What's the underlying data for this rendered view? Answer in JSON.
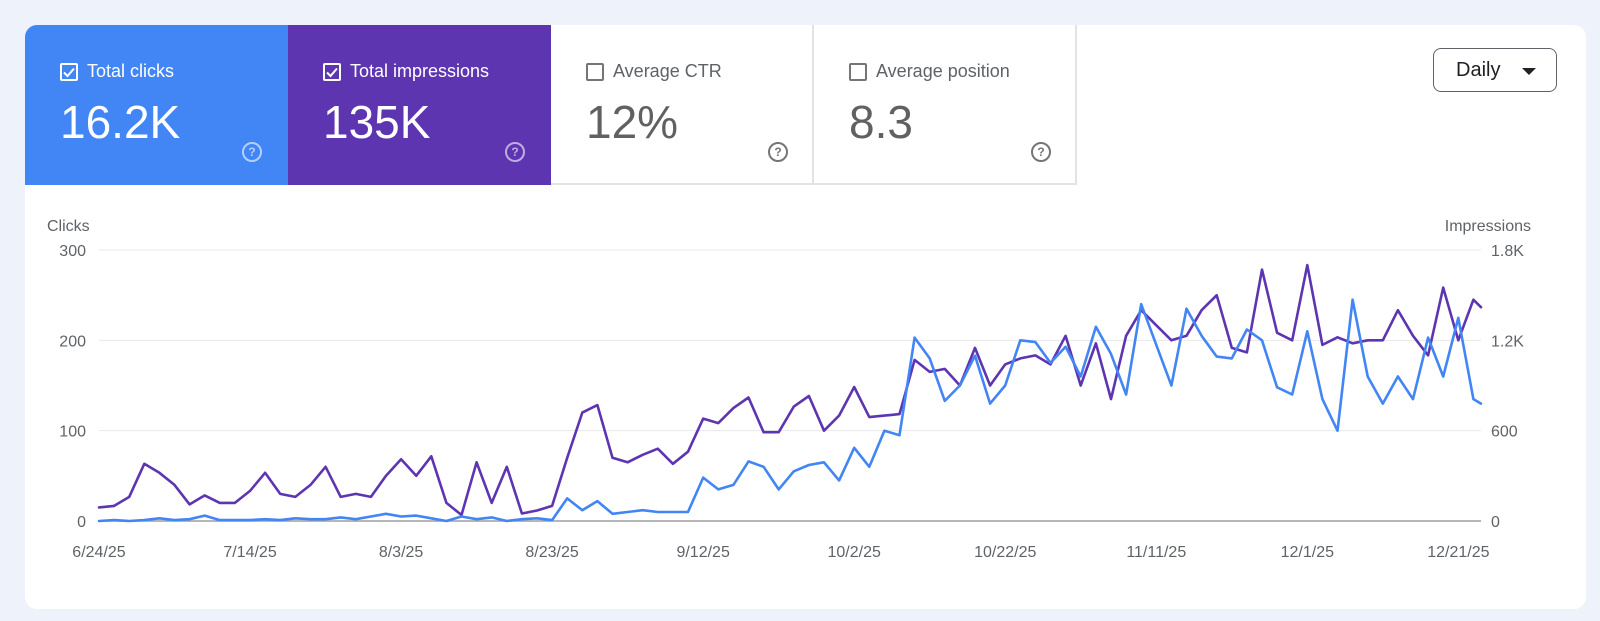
{
  "metrics": [
    {
      "label": "Total clicks",
      "value": "16.2K",
      "checked": true,
      "color": "#4285f4"
    },
    {
      "label": "Total impressions",
      "value": "135K",
      "checked": true,
      "color": "#5e35b1"
    },
    {
      "label": "Average CTR",
      "value": "12%",
      "checked": false
    },
    {
      "label": "Average position",
      "value": "8.3",
      "checked": false
    }
  ],
  "help_glyph": "?",
  "granularity": {
    "selected": "Daily"
  },
  "chart_data": {
    "type": "line",
    "y_left": {
      "label": "Clicks",
      "range": [
        0,
        300
      ],
      "ticks": [
        "0",
        "100",
        "200",
        "300"
      ]
    },
    "y_right": {
      "label": "Impressions",
      "range": [
        0,
        1800
      ],
      "ticks": [
        "0",
        "600",
        "1.2K",
        "1.8K"
      ]
    },
    "x_tick_labels": [
      "6/24/25",
      "7/14/25",
      "8/3/25",
      "8/23/25",
      "9/12/25",
      "10/2/25",
      "10/22/25",
      "11/11/25",
      "12/1/25",
      "12/21/25"
    ],
    "x_range": [
      "6/24/25",
      "12/24/25"
    ],
    "grid": "horizontal",
    "series": [
      {
        "name": "Clicks",
        "axis": "left",
        "color": "#4285f4",
        "points": [
          [
            "6/24/25",
            0
          ],
          [
            "6/26/25",
            1
          ],
          [
            "6/28/25",
            0
          ],
          [
            "6/30/25",
            1
          ],
          [
            "7/2/25",
            3
          ],
          [
            "7/4/25",
            1
          ],
          [
            "7/6/25",
            2
          ],
          [
            "7/8/25",
            6
          ],
          [
            "7/10/25",
            1
          ],
          [
            "7/12/25",
            1
          ],
          [
            "7/14/25",
            1
          ],
          [
            "7/16/25",
            2
          ],
          [
            "7/18/25",
            1
          ],
          [
            "7/20/25",
            3
          ],
          [
            "7/22/25",
            2
          ],
          [
            "7/24/25",
            2
          ],
          [
            "7/26/25",
            4
          ],
          [
            "7/28/25",
            2
          ],
          [
            "7/30/25",
            5
          ],
          [
            "8/1/25",
            8
          ],
          [
            "8/3/25",
            5
          ],
          [
            "8/5/25",
            6
          ],
          [
            "8/7/25",
            3
          ],
          [
            "8/9/25",
            0
          ],
          [
            "8/11/25",
            5
          ],
          [
            "8/13/25",
            2
          ],
          [
            "8/15/25",
            4
          ],
          [
            "8/17/25",
            0
          ],
          [
            "8/19/25",
            2
          ],
          [
            "8/21/25",
            3
          ],
          [
            "8/23/25",
            1
          ],
          [
            "8/25/25",
            25
          ],
          [
            "8/27/25",
            12
          ],
          [
            "8/29/25",
            22
          ],
          [
            "8/31/25",
            8
          ],
          [
            "9/2/25",
            10
          ],
          [
            "9/4/25",
            12
          ],
          [
            "9/6/25",
            10
          ],
          [
            "9/8/25",
            10
          ],
          [
            "9/10/25",
            10
          ],
          [
            "9/12/25",
            48
          ],
          [
            "9/14/25",
            35
          ],
          [
            "9/16/25",
            40
          ],
          [
            "9/18/25",
            66
          ],
          [
            "9/20/25",
            60
          ],
          [
            "9/22/25",
            35
          ],
          [
            "9/24/25",
            55
          ],
          [
            "9/26/25",
            62
          ],
          [
            "9/28/25",
            65
          ],
          [
            "9/30/25",
            45
          ],
          [
            "10/2/25",
            81
          ],
          [
            "10/4/25",
            60
          ],
          [
            "10/6/25",
            100
          ],
          [
            "10/8/25",
            95
          ],
          [
            "10/10/25",
            203
          ],
          [
            "10/12/25",
            180
          ],
          [
            "10/14/25",
            133
          ],
          [
            "10/16/25",
            150
          ],
          [
            "10/18/25",
            183
          ],
          [
            "10/20/25",
            130
          ],
          [
            "10/22/25",
            150
          ],
          [
            "10/24/25",
            200
          ],
          [
            "10/26/25",
            198
          ],
          [
            "10/28/25",
            175
          ],
          [
            "10/30/25",
            193
          ],
          [
            "11/1/25",
            160
          ],
          [
            "11/3/25",
            215
          ],
          [
            "11/5/25",
            185
          ],
          [
            "11/7/25",
            140
          ],
          [
            "11/9/25",
            240
          ],
          [
            "11/11/25",
            195
          ],
          [
            "11/13/25",
            150
          ],
          [
            "11/15/25",
            235
          ],
          [
            "11/17/25",
            205
          ],
          [
            "11/19/25",
            182
          ],
          [
            "11/21/25",
            180
          ],
          [
            "11/23/25",
            212
          ],
          [
            "11/25/25",
            200
          ],
          [
            "11/27/25",
            148
          ],
          [
            "11/29/25",
            140
          ],
          [
            "12/1/25",
            210
          ],
          [
            "12/3/25",
            135
          ],
          [
            "12/5/25",
            100
          ],
          [
            "12/7/25",
            245
          ],
          [
            "12/9/25",
            160
          ],
          [
            "12/11/25",
            130
          ],
          [
            "12/13/25",
            160
          ],
          [
            "12/15/25",
            135
          ],
          [
            "12/17/25",
            203
          ],
          [
            "12/19/25",
            160
          ],
          [
            "12/21/25",
            225
          ],
          [
            "12/23/25",
            135
          ],
          [
            "12/24/25",
            130
          ]
        ]
      },
      {
        "name": "Impressions",
        "axis": "right",
        "color": "#5e35b1",
        "points": [
          [
            "6/24/25",
            90
          ],
          [
            "6/26/25",
            100
          ],
          [
            "6/28/25",
            160
          ],
          [
            "6/30/25",
            380
          ],
          [
            "7/2/25",
            320
          ],
          [
            "7/4/25",
            240
          ],
          [
            "7/6/25",
            110
          ],
          [
            "7/8/25",
            170
          ],
          [
            "7/10/25",
            120
          ],
          [
            "7/12/25",
            120
          ],
          [
            "7/14/25",
            200
          ],
          [
            "7/16/25",
            320
          ],
          [
            "7/18/25",
            180
          ],
          [
            "7/20/25",
            160
          ],
          [
            "7/22/25",
            240
          ],
          [
            "7/24/25",
            360
          ],
          [
            "7/26/25",
            160
          ],
          [
            "7/28/25",
            180
          ],
          [
            "7/30/25",
            160
          ],
          [
            "8/1/25",
            300
          ],
          [
            "8/3/25",
            410
          ],
          [
            "8/5/25",
            300
          ],
          [
            "8/7/25",
            430
          ],
          [
            "8/9/25",
            120
          ],
          [
            "8/11/25",
            40
          ],
          [
            "8/13/25",
            390
          ],
          [
            "8/15/25",
            120
          ],
          [
            "8/17/25",
            360
          ],
          [
            "8/19/25",
            50
          ],
          [
            "8/21/25",
            70
          ],
          [
            "8/23/25",
            100
          ],
          [
            "8/25/25",
            420
          ],
          [
            "8/27/25",
            720
          ],
          [
            "8/29/25",
            770
          ],
          [
            "8/31/25",
            420
          ],
          [
            "9/2/25",
            390
          ],
          [
            "9/4/25",
            440
          ],
          [
            "9/6/25",
            480
          ],
          [
            "9/8/25",
            380
          ],
          [
            "9/10/25",
            460
          ],
          [
            "9/12/25",
            680
          ],
          [
            "9/14/25",
            650
          ],
          [
            "9/16/25",
            750
          ],
          [
            "9/18/25",
            820
          ],
          [
            "9/20/25",
            590
          ],
          [
            "9/22/25",
            590
          ],
          [
            "9/24/25",
            760
          ],
          [
            "9/26/25",
            830
          ],
          [
            "9/28/25",
            600
          ],
          [
            "9/30/25",
            700
          ],
          [
            "10/2/25",
            890
          ],
          [
            "10/4/25",
            690
          ],
          [
            "10/6/25",
            700
          ],
          [
            "10/8/25",
            710
          ],
          [
            "10/10/25",
            1070
          ],
          [
            "10/12/25",
            990
          ],
          [
            "10/14/25",
            1010
          ],
          [
            "10/16/25",
            900
          ],
          [
            "10/18/25",
            1150
          ],
          [
            "10/20/25",
            900
          ],
          [
            "10/22/25",
            1040
          ],
          [
            "10/24/25",
            1080
          ],
          [
            "10/26/25",
            1100
          ],
          [
            "10/28/25",
            1040
          ],
          [
            "10/30/25",
            1230
          ],
          [
            "11/1/25",
            900
          ],
          [
            "11/3/25",
            1180
          ],
          [
            "11/5/25",
            810
          ],
          [
            "11/7/25",
            1230
          ],
          [
            "11/9/25",
            1400
          ],
          [
            "11/11/25",
            1300
          ],
          [
            "11/13/25",
            1200
          ],
          [
            "11/15/25",
            1230
          ],
          [
            "11/17/25",
            1400
          ],
          [
            "11/19/25",
            1500
          ],
          [
            "11/21/25",
            1150
          ],
          [
            "11/23/25",
            1120
          ],
          [
            "11/25/25",
            1670
          ],
          [
            "11/27/25",
            1250
          ],
          [
            "11/29/25",
            1200
          ],
          [
            "12/1/25",
            1700
          ],
          [
            "12/3/25",
            1170
          ],
          [
            "12/5/25",
            1220
          ],
          [
            "12/7/25",
            1180
          ],
          [
            "12/9/25",
            1200
          ],
          [
            "12/11/25",
            1200
          ],
          [
            "12/13/25",
            1400
          ],
          [
            "12/15/25",
            1230
          ],
          [
            "12/17/25",
            1100
          ],
          [
            "12/19/25",
            1550
          ],
          [
            "12/21/25",
            1200
          ],
          [
            "12/23/25",
            1470
          ],
          [
            "12/24/25",
            1420
          ]
        ]
      }
    ]
  }
}
